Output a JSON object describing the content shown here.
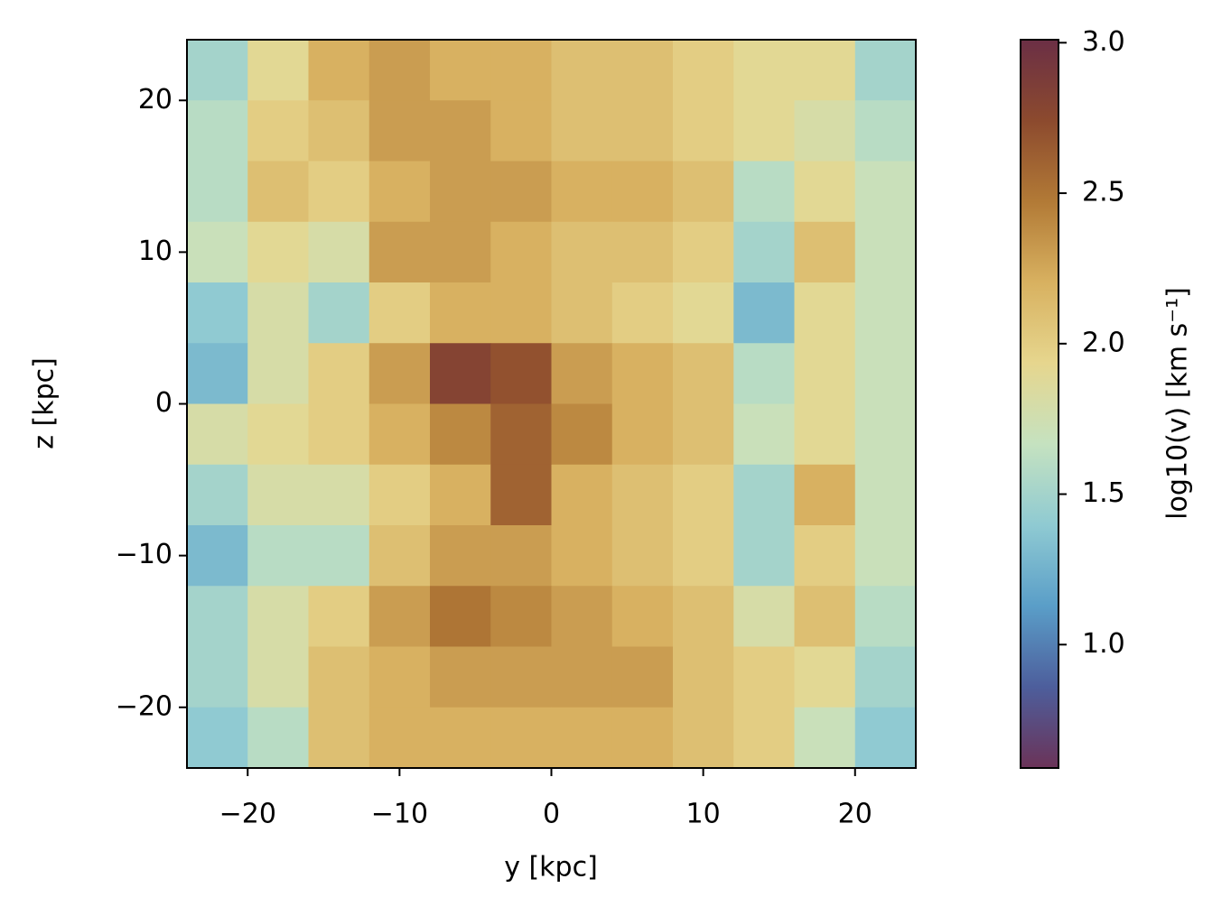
{
  "chart_data": {
    "type": "heatmap",
    "xlabel": "y [kpc]",
    "ylabel": "z [kpc]",
    "xlim": [
      -24,
      24
    ],
    "ylim": [
      -24,
      24
    ],
    "xticks": [
      {
        "value": -20,
        "label": "−20"
      },
      {
        "value": -10,
        "label": "−10"
      },
      0,
      10,
      20
    ],
    "yticks": [
      {
        "value": -20,
        "label": "−20"
      },
      {
        "value": -10,
        "label": "−10"
      },
      0,
      10,
      20
    ],
    "x": [
      -22,
      -18,
      -14,
      -10,
      -6,
      -2,
      2,
      6,
      10,
      14,
      18,
      22
    ],
    "y": [
      22,
      18,
      14,
      10,
      6,
      2,
      -2,
      -6,
      -10,
      -14,
      -18,
      -22
    ],
    "values": [
      [
        1.5,
        1.9,
        2.2,
        2.3,
        2.2,
        2.2,
        2.1,
        2.1,
        2.0,
        1.9,
        1.9,
        1.5
      ],
      [
        1.6,
        2.0,
        2.1,
        2.3,
        2.3,
        2.2,
        2.1,
        2.1,
        2.0,
        1.9,
        1.8,
        1.6
      ],
      [
        1.6,
        2.1,
        2.0,
        2.2,
        2.3,
        2.3,
        2.2,
        2.2,
        2.1,
        1.6,
        1.9,
        1.7
      ],
      [
        1.7,
        1.9,
        1.8,
        2.3,
        2.3,
        2.2,
        2.1,
        2.1,
        2.0,
        1.5,
        2.1,
        1.7
      ],
      [
        1.4,
        1.8,
        1.5,
        2.0,
        2.2,
        2.2,
        2.1,
        2.0,
        1.9,
        1.3,
        1.9,
        1.7
      ],
      [
        1.3,
        1.8,
        2.0,
        2.3,
        2.8,
        2.7,
        2.3,
        2.2,
        2.1,
        1.6,
        1.9,
        1.7
      ],
      [
        1.8,
        1.9,
        2.0,
        2.2,
        2.4,
        2.6,
        2.4,
        2.2,
        2.1,
        1.7,
        1.9,
        1.7
      ],
      [
        1.5,
        1.8,
        1.8,
        2.0,
        2.2,
        2.6,
        2.2,
        2.1,
        2.0,
        1.5,
        2.2,
        1.7
      ],
      [
        1.3,
        1.6,
        1.6,
        2.1,
        2.3,
        2.3,
        2.2,
        2.1,
        2.0,
        1.5,
        2.0,
        1.7
      ],
      [
        1.5,
        1.8,
        2.0,
        2.3,
        2.5,
        2.4,
        2.3,
        2.2,
        2.1,
        1.8,
        2.1,
        1.6
      ],
      [
        1.5,
        1.8,
        2.1,
        2.2,
        2.3,
        2.3,
        2.3,
        2.3,
        2.1,
        2.0,
        1.9,
        1.5
      ],
      [
        1.4,
        1.6,
        2.1,
        2.2,
        2.2,
        2.2,
        2.2,
        2.2,
        2.1,
        2.0,
        1.7,
        1.4
      ]
    ],
    "colorbar": {
      "label": "log10(v) [km s⁻¹]",
      "clim": [
        0.59,
        3.01
      ],
      "ticks": [
        {
          "value": 1,
          "label": "1.0"
        },
        {
          "value": 1.5,
          "label": "1.5"
        },
        {
          "value": 2,
          "label": "2.0"
        },
        {
          "value": 2.5,
          "label": "2.5"
        },
        {
          "value": 3,
          "label": "3.0"
        }
      ]
    },
    "colormap": [
      "#6b3358",
      "#4d5e9c",
      "#5a9ec8",
      "#8fcad2",
      "#c5e2c0",
      "#e6d68e",
      "#d8b160",
      "#b27a36",
      "#8c4a2e",
      "#6b2f45"
    ]
  }
}
